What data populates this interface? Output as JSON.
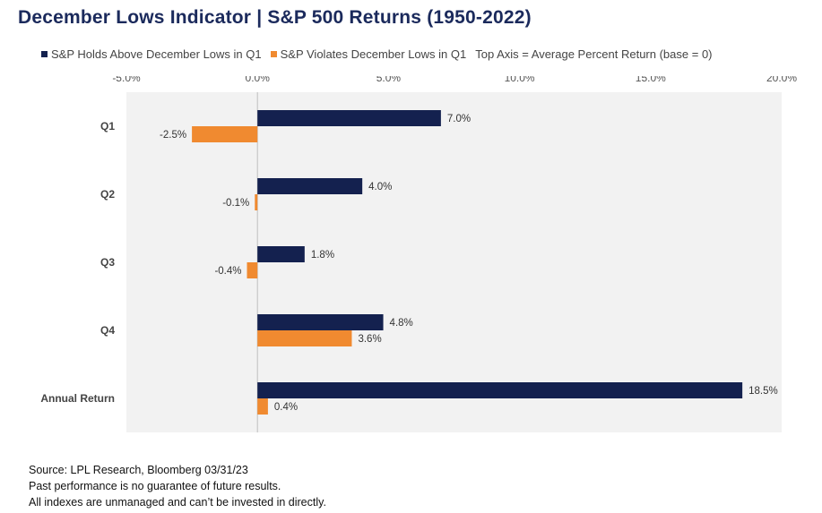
{
  "title": "December Lows Indicator | S&P 500 Returns (1950-2022)",
  "legend": [
    {
      "label": "S&P Holds Above December Lows in Q1",
      "color": "#14214f"
    },
    {
      "label": "S&P Violates December Lows in Q1",
      "color": "#f08a30"
    }
  ],
  "legend_note": "Top Axis = Average Percent Return (base = 0)",
  "chart_data": {
    "type": "bar",
    "orientation": "horizontal",
    "categories": [
      "Q1",
      "Q2",
      "Q3",
      "Q4",
      "Annual Return"
    ],
    "series": [
      {
        "name": "S&P Holds Above December Lows in Q1",
        "values": [
          7.0,
          4.0,
          1.8,
          4.8,
          18.5
        ],
        "labels": [
          "7.0%",
          "4.0%",
          "1.8%",
          "4.8%",
          "18.5%"
        ],
        "color": "#14214f"
      },
      {
        "name": "S&P Violates December Lows in Q1",
        "values": [
          -2.5,
          -0.1,
          -0.4,
          3.6,
          0.4
        ],
        "labels": [
          "-2.5%",
          "-0.1%",
          "-0.4%",
          "3.6%",
          "0.4%"
        ],
        "color": "#f08a30"
      }
    ],
    "xlim": [
      -5,
      20
    ],
    "xticks": [
      -5,
      0,
      5,
      10,
      15,
      20
    ],
    "xtick_labels": [
      "-5.0%",
      "0.0%",
      "5.0%",
      "10.0%",
      "15.0%",
      "20.0%"
    ],
    "axis_position": "top",
    "plot_background": "#f2f2f2",
    "grid": false
  },
  "footer": {
    "source": "Source: LPL Research, Bloomberg 03/31/23",
    "disclaimer1": "Past performance is no guarantee of future results.",
    "disclaimer2": "All indexes are unmanaged and can’t be invested in directly."
  }
}
